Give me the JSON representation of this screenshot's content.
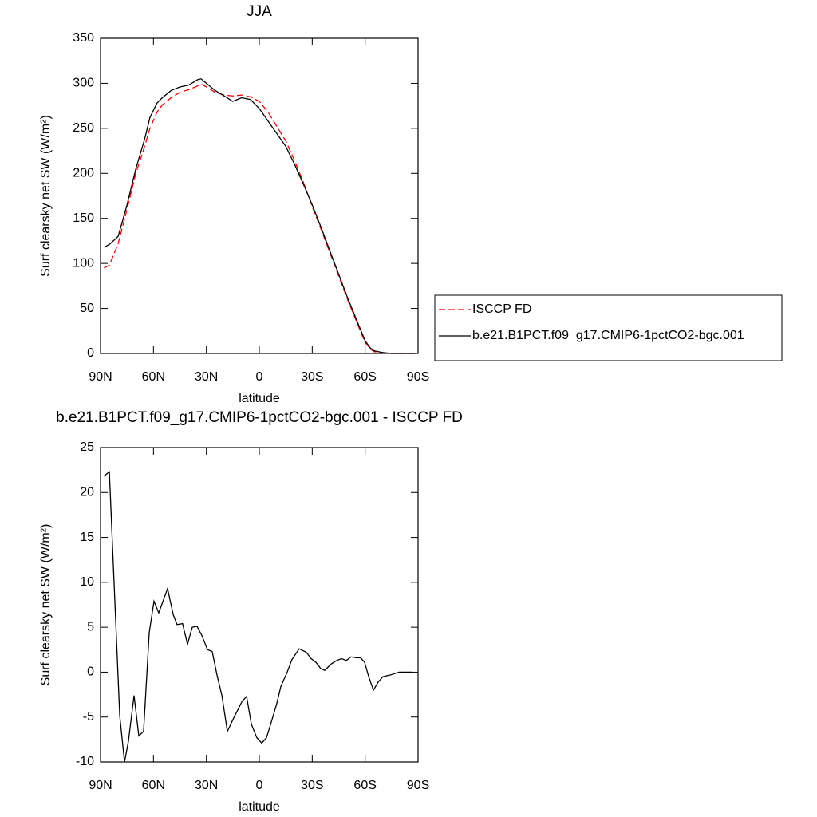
{
  "chart_data": [
    {
      "type": "line",
      "title": "JJA",
      "xlabel": "latitude",
      "ylabel": "Surf clearsky net SW (W/m²)",
      "x": [
        88,
        85,
        80,
        75,
        70,
        65,
        62,
        58,
        55,
        50,
        45,
        40,
        35,
        33,
        30,
        25,
        20,
        15,
        10,
        5,
        0,
        -5,
        -10,
        -15,
        -20,
        -25,
        -30,
        -35,
        -40,
        -45,
        -50,
        -55,
        -60,
        -63,
        -65,
        -70,
        -75,
        -80,
        -85,
        -88
      ],
      "series": [
        {
          "name": "ISCCP FD",
          "color": "#ff0000",
          "dash": true,
          "values": [
            95,
            98,
            122,
            160,
            200,
            230,
            250,
            268,
            276,
            284,
            290,
            293,
            297,
            299,
            296,
            290,
            287,
            286,
            287,
            285,
            280,
            268,
            252,
            236,
            214,
            190,
            163,
            138,
            112,
            86,
            60,
            36,
            12,
            5,
            2,
            1,
            0,
            0,
            0,
            0
          ]
        },
        {
          "name": "b.e21.B1PCT.f09_g17.CMIP6-1pctCO2-bgc.001",
          "color": "#000000",
          "dash": false,
          "values": [
            118,
            121,
            130,
            165,
            205,
            238,
            262,
            278,
            284,
            292,
            296,
            298,
            304,
            305,
            300,
            292,
            286,
            280,
            284,
            282,
            272,
            258,
            244,
            230,
            210,
            188,
            165,
            140,
            114,
            88,
            62,
            38,
            14,
            6,
            3,
            1,
            0,
            0,
            0,
            0
          ]
        }
      ],
      "xlim": [
        90,
        -90
      ],
      "xticks": [
        {
          "value": 90,
          "label": "90N"
        },
        {
          "value": 60,
          "label": "60N"
        },
        {
          "value": 30,
          "label": "30N"
        },
        0,
        {
          "value": -30,
          "label": "30S"
        },
        {
          "value": -60,
          "label": "60S"
        },
        {
          "value": -90,
          "label": "90S"
        }
      ],
      "ylim": [
        0,
        350
      ],
      "yticks": [
        0,
        50,
        100,
        150,
        200,
        250,
        300,
        350
      ],
      "legend": "right"
    },
    {
      "type": "line",
      "title": "b.e21.B1PCT.f09_g17.CMIP6-1pctCO2-bgc.001 - ISCCP FD",
      "xlabel": "latitude",
      "ylabel": "Surf clearsky net SW (W/m²)",
      "x": [
        88.2,
        85,
        79.1,
        76.4,
        74.2,
        71,
        68.3,
        65.6,
        62.4,
        59.7,
        57,
        52,
        48.8,
        46.6,
        43.5,
        40.7,
        38,
        35.3,
        32.6,
        29.4,
        26.7,
        24,
        21.2,
        18.1,
        14.5,
        9.9,
        7.2,
        4.5,
        1.4,
        -1.4,
        -4.1,
        -7.2,
        -9.9,
        -12.2,
        -15.8,
        -18.5,
        -22.6,
        -26.7,
        -29.4,
        -32.1,
        -34.8,
        -37.1,
        -40.7,
        -43.9,
        -46.6,
        -49.3,
        -52,
        -55.2,
        -57.4,
        -59.7,
        -62,
        -64.7,
        -67.4,
        -70.1,
        -74.6,
        -79.2,
        -86.8
      ],
      "values": [
        21.8,
        22.3,
        -4.9,
        -10,
        -7.7,
        -2.6,
        -7.1,
        -6.6,
        4.4,
        7.9,
        6.6,
        9.3,
        6.4,
        5.3,
        5.4,
        3.1,
        5.0,
        5.1,
        4.1,
        2.5,
        2.3,
        -0.3,
        -2.6,
        -6.6,
        -5.1,
        -3.3,
        -2.7,
        -5.8,
        -7.3,
        -7.9,
        -7.3,
        -5.3,
        -3.5,
        -1.6,
        0,
        1.4,
        2.6,
        2.2,
        1.5,
        1.1,
        0.4,
        0.2,
        0.9,
        1.3,
        1.5,
        1.3,
        1.7,
        1.6,
        1.6,
        1.1,
        -0.5,
        -2.0,
        -1.1,
        -0.5,
        -0.3,
        0,
        0
      ],
      "color": "#000000",
      "xlim": [
        90,
        -90
      ],
      "xticks": [
        {
          "value": 90,
          "label": "90N"
        },
        {
          "value": 60,
          "label": "60N"
        },
        {
          "value": 30,
          "label": "30N"
        },
        0,
        {
          "value": -30,
          "label": "30S"
        },
        {
          "value": -60,
          "label": "60S"
        },
        {
          "value": -90,
          "label": "90S"
        }
      ],
      "ylim": [
        -10,
        25
      ],
      "yticks": [
        -10,
        -5,
        0,
        5,
        10,
        15,
        20,
        25
      ]
    }
  ]
}
